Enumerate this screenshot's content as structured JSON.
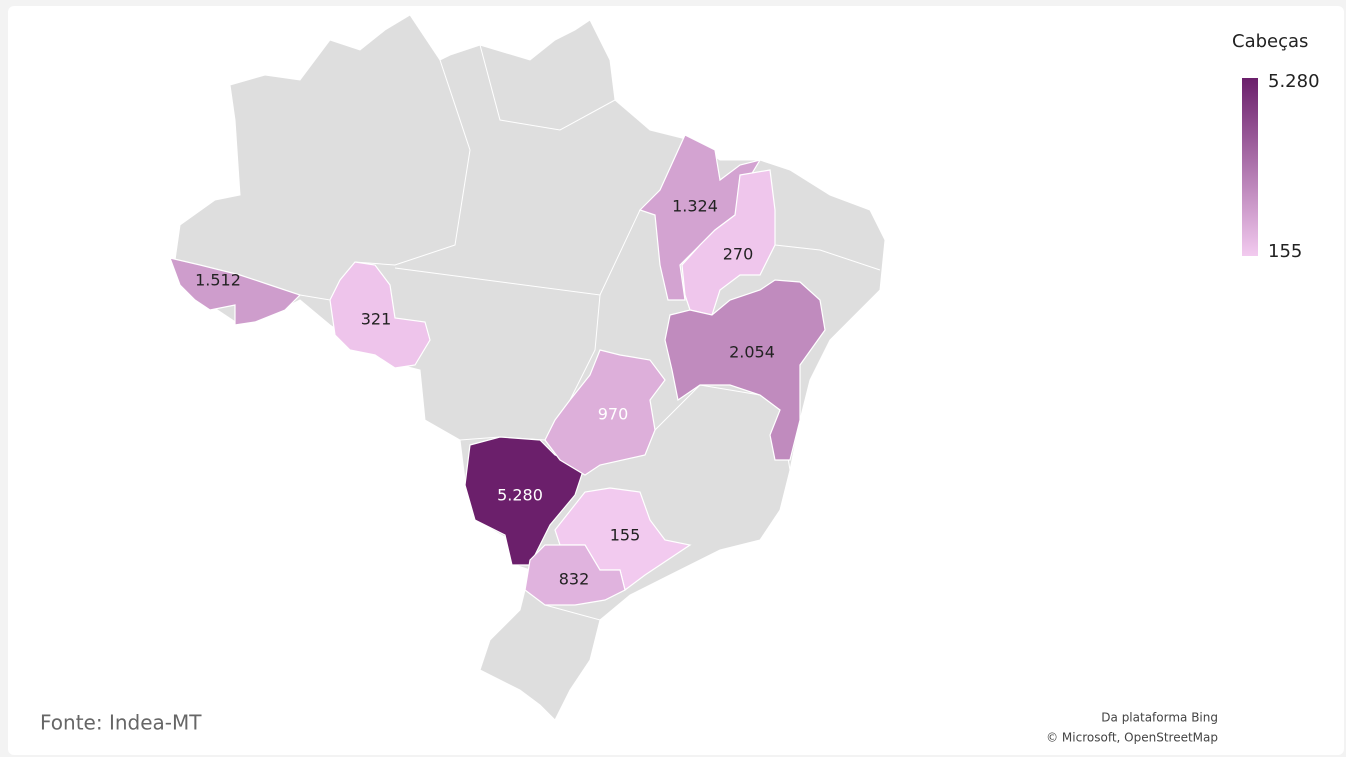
{
  "chart_data": {
    "type": "choropleth",
    "values": [
      1512,
      321,
      5280,
      970,
      1324,
      270,
      2054,
      155,
      832
    ],
    "value_labels": [
      "1.512",
      "321",
      "5.280",
      "970",
      "1.324",
      "270",
      "2.054",
      "155",
      "832"
    ],
    "color_range": [
      "#f2caef",
      "#6b1f6b"
    ],
    "clim": [
      155,
      5280
    ],
    "legend": {
      "title": "Cabeças",
      "ticks": [
        {
          "value": 5280,
          "label": "5.280"
        },
        155
      ]
    },
    "source": "Fonte: Indea-MT",
    "attribution": [
      "Da plataforma Bing",
      "© Microsoft, OpenStreetMap"
    ]
  }
}
